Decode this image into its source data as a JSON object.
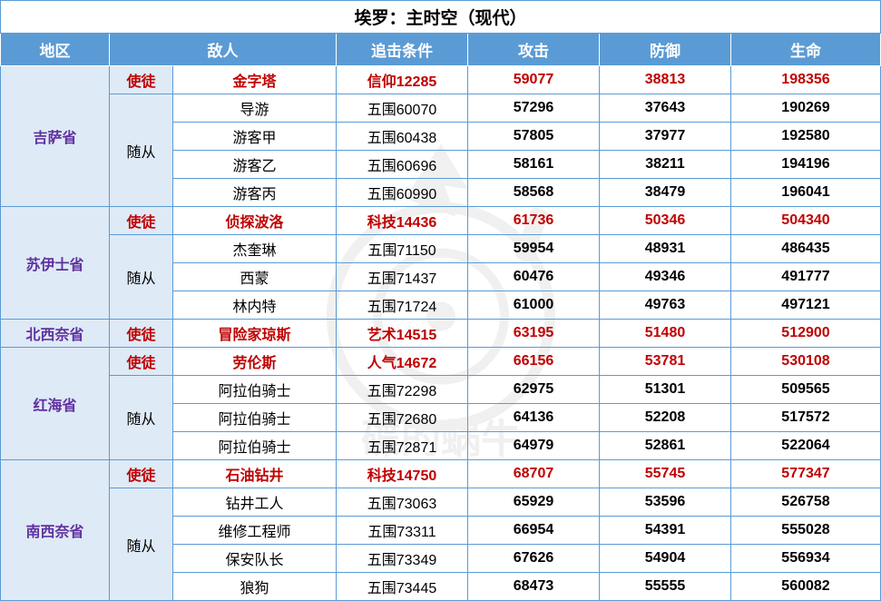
{
  "title": "埃罗：主时空（现代）",
  "headers": {
    "region": "地区",
    "enemy": "敌人",
    "condition": "追击条件",
    "attack": "攻击",
    "defense": "防御",
    "life": "生命"
  },
  "type_labels": {
    "apostle": "使徒",
    "follower": "随从"
  },
  "regions": [
    {
      "name": "吉萨省",
      "apostle": {
        "name": "金字塔",
        "condition": "信仰12285",
        "atk": "59077",
        "def": "38813",
        "hp": "198356"
      },
      "followers": [
        {
          "name": "导游",
          "condition": "五围60070",
          "atk": "57296",
          "def": "37643",
          "hp": "190269"
        },
        {
          "name": "游客甲",
          "condition": "五围60438",
          "atk": "57805",
          "def": "37977",
          "hp": "192580"
        },
        {
          "name": "游客乙",
          "condition": "五围60696",
          "atk": "58161",
          "def": "38211",
          "hp": "194196"
        },
        {
          "name": "游客丙",
          "condition": "五围60990",
          "atk": "58568",
          "def": "38479",
          "hp": "196041"
        }
      ]
    },
    {
      "name": "苏伊士省",
      "apostle": {
        "name": "侦探波洛",
        "condition": "科技14436",
        "atk": "61736",
        "def": "50346",
        "hp": "504340"
      },
      "followers": [
        {
          "name": "杰奎琳",
          "condition": "五围71150",
          "atk": "59954",
          "def": "48931",
          "hp": "486435"
        },
        {
          "name": "西蒙",
          "condition": "五围71437",
          "atk": "60476",
          "def": "49346",
          "hp": "491777"
        },
        {
          "name": "林内特",
          "condition": "五围71724",
          "atk": "61000",
          "def": "49763",
          "hp": "497121"
        }
      ]
    },
    {
      "name": "北西奈省",
      "apostle": {
        "name": "冒险家琼斯",
        "condition": "艺术14515",
        "atk": "63195",
        "def": "51480",
        "hp": "512900"
      },
      "followers": []
    },
    {
      "name": "红海省",
      "apostle": {
        "name": "劳伦斯",
        "condition": "人气14672",
        "atk": "66156",
        "def": "53781",
        "hp": "530108"
      },
      "followers": [
        {
          "name": "阿拉伯骑士",
          "condition": "五围72298",
          "atk": "62975",
          "def": "51301",
          "hp": "509565"
        },
        {
          "name": "阿拉伯骑士",
          "condition": "五围72680",
          "atk": "64136",
          "def": "52208",
          "hp": "517572"
        },
        {
          "name": "阿拉伯骑士",
          "condition": "五围72871",
          "atk": "64979",
          "def": "52861",
          "hp": "522064"
        }
      ]
    },
    {
      "name": "南西奈省",
      "apostle": {
        "name": "石油钻井",
        "condition": "科技14750",
        "atk": "68707",
        "def": "55745",
        "hp": "577347"
      },
      "followers": [
        {
          "name": "钻井工人",
          "condition": "五围73063",
          "atk": "65929",
          "def": "53596",
          "hp": "526758"
        },
        {
          "name": "维修工程师",
          "condition": "五围73311",
          "atk": "66954",
          "def": "54391",
          "hp": "555028"
        },
        {
          "name": "保安队长",
          "condition": "五围73349",
          "atk": "67626",
          "def": "54904",
          "hp": "556934"
        },
        {
          "name": "狼狗",
          "condition": "五围73445",
          "atk": "68473",
          "def": "55555",
          "hp": "560082"
        }
      ]
    }
  ],
  "style": {
    "header_bg": "#5b9bd5",
    "header_fg": "#ffffff",
    "band_bg": "#deeaf6",
    "region_color": "#6030a0",
    "apostle_color": "#c00000",
    "border_color": "#5b9bd5"
  }
}
